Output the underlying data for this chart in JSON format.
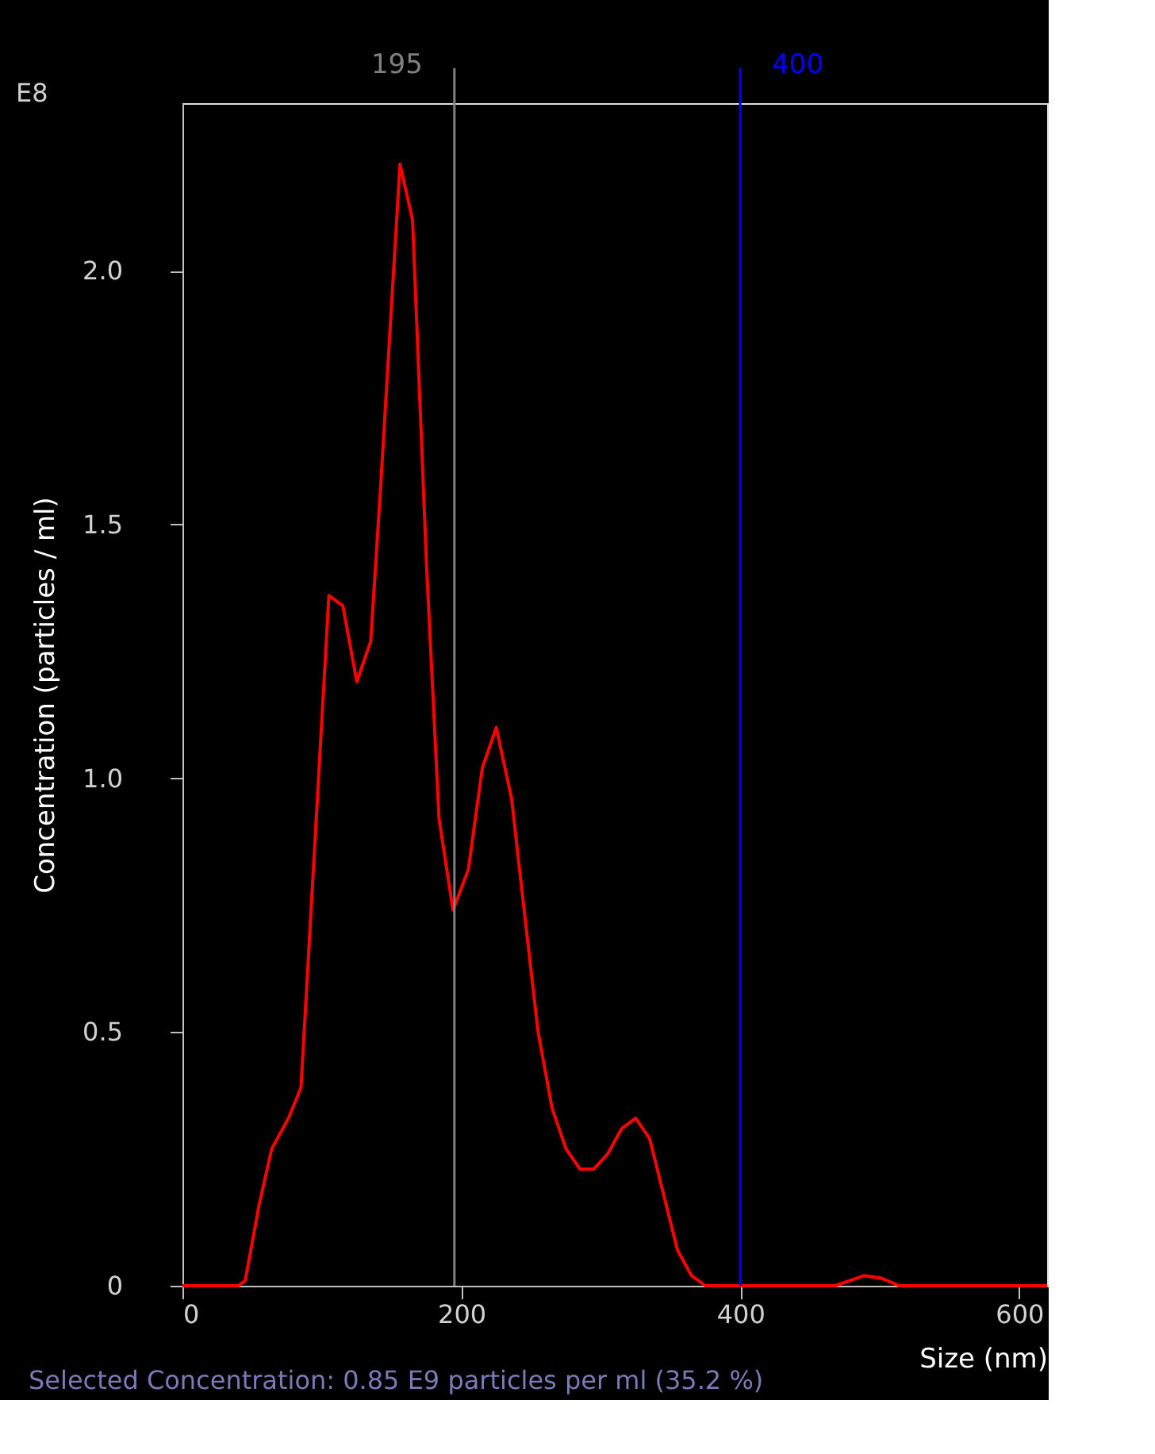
{
  "chart_data": {
    "type": "line",
    "xlabel": "Size (nm)",
    "ylabel": "Concentration (particles / ml)",
    "x": [
      0,
      40,
      45,
      55,
      64,
      76,
      85,
      105,
      115,
      125,
      135,
      142,
      156,
      165,
      175,
      184,
      194,
      205,
      215,
      225,
      236,
      245,
      255,
      265,
      275,
      285,
      295,
      305,
      315,
      325,
      335,
      345,
      355,
      365,
      375,
      468,
      489,
      501,
      514,
      620
    ],
    "series": [
      {
        "color": "#ff0000",
        "values": [
          0,
          0,
          0.01,
          0.16,
          0.27,
          0.33,
          0.39,
          1.36,
          1.34,
          1.19,
          1.27,
          1.57,
          2.21,
          2.1,
          1.42,
          0.92,
          0.74,
          0.82,
          1.02,
          1.1,
          0.96,
          0.74,
          0.5,
          0.35,
          0.27,
          0.23,
          0.23,
          0.26,
          0.31,
          0.33,
          0.29,
          0.18,
          0.07,
          0.02,
          0,
          0,
          0.02,
          0.015,
          0,
          0
        ]
      }
    ],
    "xlim": [
      0,
      620
    ],
    "xticks": [
      0,
      200,
      400,
      600
    ],
    "ylim": [
      0,
      2.33
    ],
    "yticks": [
      0,
      0.5,
      {
        "value": 1,
        "label": "1.0"
      },
      1.5,
      {
        "value": 2,
        "label": "2.0"
      }
    ],
    "ref_lines": [
      {
        "axis": "x",
        "value": 195,
        "label": "195",
        "color": "#808080"
      },
      {
        "axis": "x",
        "value": 400,
        "label": "400",
        "color": "#0000ff"
      }
    ],
    "annotations": [
      "E8",
      "Selected Concentration: 0.85 E9 particles per ml (35.2 %)"
    ],
    "grid": false,
    "marker": "none",
    "line_style": "solid"
  }
}
